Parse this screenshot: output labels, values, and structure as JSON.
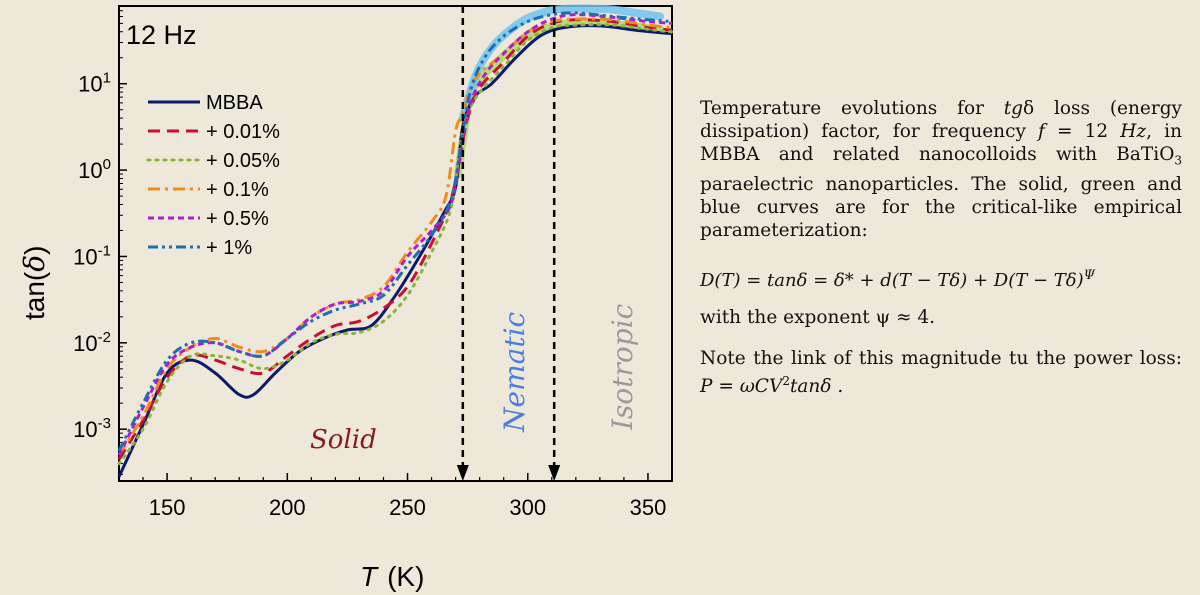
{
  "chart_data": {
    "type": "line",
    "title": "12 Hz",
    "xlabel": "T (K)",
    "xlabel_italic": "T",
    "xlabel_unit": "(K)",
    "ylabel": "tan(δ)",
    "xlim": [
      130,
      360
    ],
    "ylim_log10": [
      -3.6,
      1.9
    ],
    "yscale": "log",
    "x_ticks": [
      150,
      200,
      250,
      300,
      350
    ],
    "y_ticks": [
      {
        "label_base": "10",
        "label_exp": "-3",
        "value": -3
      },
      {
        "label_base": "10",
        "label_exp": "-2",
        "value": -2
      },
      {
        "label_base": "10",
        "label_exp": "-1",
        "value": -1
      },
      {
        "label_base": "10",
        "label_exp": "0",
        "value": 0
      },
      {
        "label_base": "10",
        "label_exp": "1",
        "value": 1
      }
    ],
    "transitions": [
      {
        "name": "solid-nematic",
        "x": 273
      },
      {
        "name": "nematic-isotropic",
        "x": 311
      }
    ],
    "phase_labels": [
      {
        "text": "Solid",
        "color": "#8b1a1a"
      },
      {
        "text": "Nematic",
        "color": "#4a7fe0"
      },
      {
        "text": "Isotropic",
        "color": "#9a9a9a"
      }
    ],
    "series": [
      {
        "name": "MBBA",
        "color": "#0a1a6e",
        "dash": "solid",
        "x": [
          130,
          140,
          150,
          160,
          170,
          180,
          186,
          195,
          205,
          215,
          225,
          235,
          245,
          255,
          265,
          270,
          273,
          278,
          285,
          295,
          305,
          315,
          330,
          345,
          360
        ],
        "y": [
          -3.55,
          -2.95,
          -2.35,
          -2.2,
          -2.35,
          -2.6,
          -2.6,
          -2.35,
          -2.1,
          -1.95,
          -1.85,
          -1.8,
          -1.45,
          -1.0,
          -0.5,
          -0.2,
          0.5,
          0.85,
          1.0,
          1.3,
          1.55,
          1.65,
          1.67,
          1.62,
          1.58
        ]
      },
      {
        "name": "+ 0.01%",
        "color": "#c8102e",
        "dash": "dash",
        "x": [
          130,
          140,
          150,
          160,
          170,
          180,
          190,
          200,
          210,
          220,
          230,
          240,
          250,
          260,
          268,
          272,
          275,
          280,
          290,
          300,
          310,
          320,
          335,
          350,
          360
        ],
        "y": [
          -3.35,
          -2.9,
          -2.4,
          -2.15,
          -2.2,
          -2.3,
          -2.35,
          -2.15,
          -1.95,
          -1.8,
          -1.75,
          -1.6,
          -1.35,
          -0.85,
          -0.35,
          0.2,
          0.6,
          0.95,
          1.25,
          1.55,
          1.7,
          1.74,
          1.72,
          1.65,
          1.62
        ]
      },
      {
        "name": "+ 0.05%",
        "color": "#8db33a",
        "dash": "dot",
        "x": [
          130,
          140,
          150,
          160,
          170,
          180,
          190,
          200,
          210,
          220,
          230,
          240,
          250,
          260,
          268,
          272,
          275,
          280,
          290,
          300,
          310,
          320,
          335,
          350,
          360
        ],
        "y": [
          -3.4,
          -3.0,
          -2.45,
          -2.15,
          -2.15,
          -2.2,
          -2.3,
          -2.2,
          -2.0,
          -1.9,
          -1.88,
          -1.75,
          -1.45,
          -0.95,
          -0.45,
          0.3,
          0.65,
          0.9,
          1.2,
          1.5,
          1.65,
          1.68,
          1.68,
          1.63,
          1.6
        ]
      },
      {
        "name": "+ 0.1%",
        "color": "#f08c1e",
        "dash": "dashdot",
        "x": [
          130,
          140,
          150,
          160,
          170,
          180,
          190,
          200,
          210,
          220,
          230,
          240,
          250,
          260,
          266,
          270,
          273,
          278,
          290,
          300,
          310,
          320,
          335,
          350,
          360
        ],
        "y": [
          -3.3,
          -2.85,
          -2.3,
          -2.05,
          -1.95,
          -2.05,
          -2.1,
          -1.95,
          -1.7,
          -1.55,
          -1.5,
          -1.35,
          -0.95,
          -0.6,
          -0.3,
          0.45,
          0.65,
          1.05,
          1.35,
          1.6,
          1.72,
          1.75,
          1.74,
          1.68,
          1.65
        ]
      },
      {
        "name": "+ 0.5%",
        "color": "#b21bd6",
        "dash": "shortdash",
        "x": [
          130,
          140,
          150,
          160,
          170,
          180,
          190,
          200,
          210,
          220,
          230,
          240,
          250,
          260,
          268,
          272,
          276,
          282,
          290,
          300,
          310,
          320,
          335,
          350,
          360
        ],
        "y": [
          -3.3,
          -2.75,
          -2.25,
          -2.05,
          -2.0,
          -2.1,
          -2.15,
          -1.95,
          -1.7,
          -1.55,
          -1.52,
          -1.4,
          -1.0,
          -0.7,
          -0.4,
          0.15,
          0.75,
          1.1,
          1.35,
          1.6,
          1.75,
          1.8,
          1.77,
          1.72,
          1.7
        ]
      },
      {
        "name": "+ 1%",
        "color": "#1f6fb0",
        "dash": "dashdotdot",
        "x": [
          130,
          140,
          150,
          160,
          170,
          180,
          190,
          200,
          210,
          220,
          230,
          240,
          250,
          260,
          268,
          272,
          276,
          282,
          290,
          300,
          310,
          320,
          335,
          350,
          360
        ],
        "y": [
          -3.25,
          -2.7,
          -2.2,
          -2.0,
          -2.0,
          -2.1,
          -2.15,
          -1.95,
          -1.75,
          -1.62,
          -1.55,
          -1.45,
          -1.1,
          -0.75,
          -0.35,
          0.25,
          0.9,
          1.3,
          1.55,
          1.72,
          1.8,
          1.82,
          1.78,
          1.74,
          1.72
        ]
      }
    ],
    "fit_curves": [
      {
        "name": "fit-green",
        "color": "#a7db60",
        "x": [
          271,
          273,
          276,
          280,
          286,
          293,
          300,
          307,
          312,
          318,
          325,
          335,
          345,
          355
        ],
        "y": [
          -0.05,
          0.35,
          0.85,
          1.05,
          1.22,
          1.4,
          1.55,
          1.64,
          1.68,
          1.7,
          1.71,
          1.69,
          1.66,
          1.63
        ]
      },
      {
        "name": "fit-blue",
        "color": "#6ec3f0",
        "x": [
          273,
          276,
          280,
          286,
          293,
          300,
          307,
          312,
          318,
          325,
          335,
          345,
          355
        ],
        "y": [
          0.6,
          0.9,
          1.2,
          1.45,
          1.63,
          1.76,
          1.83,
          1.86,
          1.87,
          1.87,
          1.86,
          1.82,
          1.78
        ]
      }
    ]
  },
  "caption": {
    "p1_a": "Temperature evolutions for ",
    "p1_tg": "tg",
    "p1_b": "δ loss (energy dissipation) factor, for frequency ",
    "p1_f": "f",
    "p1_c": " = 12 ",
    "p1_hz": "Hz",
    "p1_d": ", in MBBA and related nanocolloids with BaTiO",
    "p1_sub": "3",
    "p1_e": " paraelectric nanoparticles. The solid, green and blue  curves are for the critical-like empirical parameterization:",
    "formula": "D(T) = tanδ = δ* + d(T − Tδ) + D(T − Tδ)",
    "formula_exp": "Ψ",
    "exponent_line": "with the exponent  ψ ≈ 4.",
    "note_a": "Note the link of this magnitude tu the power loss:  ",
    "note_formula": "P = ωCV",
    "note_sup": "2",
    "note_b": "tanδ ."
  }
}
